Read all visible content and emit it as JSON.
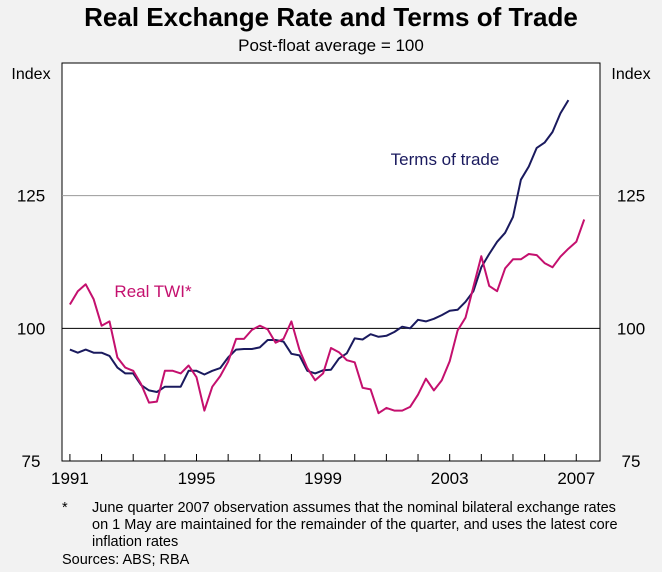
{
  "chart_data": {
    "type": "line",
    "title": "Real Exchange Rate and Terms of Trade",
    "subtitle": "Post-float average = 100",
    "ylabel_left": "Index",
    "ylabel_right": "Index",
    "xlim": [
      1990.75,
      2007.75
    ],
    "ylim": [
      75,
      150
    ],
    "yticks": [
      75,
      100,
      125
    ],
    "ytick_labels": [
      "75",
      "100",
      "125"
    ],
    "xticks": [
      1991,
      1995,
      1999,
      2003,
      2007
    ],
    "xtick_labels": [
      "1991",
      "1995",
      "1999",
      "2003",
      "2007"
    ],
    "gridlines": [
      100,
      125
    ],
    "series": [
      {
        "name": "Terms of trade",
        "color": "#1a1a5e",
        "x": [
          1991.0,
          1991.25,
          1991.5,
          1991.75,
          1992.0,
          1992.25,
          1992.5,
          1992.75,
          1993.0,
          1993.25,
          1993.5,
          1993.75,
          1994.0,
          1994.25,
          1994.5,
          1994.75,
          1995.0,
          1995.25,
          1995.5,
          1995.75,
          1996.0,
          1996.25,
          1996.5,
          1996.75,
          1997.0,
          1997.25,
          1997.5,
          1997.75,
          1998.0,
          1998.25,
          1998.5,
          1998.75,
          1999.0,
          1999.25,
          1999.5,
          1999.75,
          2000.0,
          2000.25,
          2000.5,
          2000.75,
          2001.0,
          2001.25,
          2001.5,
          2001.75,
          2002.0,
          2002.25,
          2002.5,
          2002.75,
          2003.0,
          2003.25,
          2003.5,
          2003.75,
          2004.0,
          2004.25,
          2004.5,
          2004.75,
          2005.0,
          2005.25,
          2005.5,
          2005.75,
          2006.0,
          2006.25,
          2006.5,
          2006.75
        ],
        "values": [
          96.0,
          95.4,
          96.0,
          95.4,
          95.4,
          94.8,
          92.6,
          91.5,
          91.5,
          89.3,
          88.3,
          88.0,
          89.0,
          89.0,
          89.0,
          92.0,
          92.0,
          91.3,
          92.0,
          92.5,
          94.5,
          96.0,
          96.1,
          96.1,
          96.4,
          97.8,
          97.8,
          97.5,
          95.2,
          94.9,
          92.0,
          91.5,
          92.1,
          92.2,
          94.3,
          95.3,
          98.1,
          97.9,
          98.9,
          98.4,
          98.6,
          99.3,
          100.3,
          100.0,
          101.6,
          101.3,
          101.8,
          102.5,
          103.3,
          103.5,
          105.0,
          107.0,
          111.5,
          114.0,
          116.3,
          118.0,
          121.0,
          128.0,
          130.5,
          134.0,
          135.0,
          137.0,
          140.5,
          143.0
        ]
      },
      {
        "name": "Real TWI*",
        "color": "#c4106e",
        "x": [
          1991.0,
          1991.25,
          1991.5,
          1991.75,
          1992.0,
          1992.25,
          1992.5,
          1992.75,
          1993.0,
          1993.25,
          1993.5,
          1993.75,
          1994.0,
          1994.25,
          1994.5,
          1994.75,
          1995.0,
          1995.25,
          1995.5,
          1995.75,
          1996.0,
          1996.25,
          1996.5,
          1996.75,
          1997.0,
          1997.25,
          1997.5,
          1997.75,
          1998.0,
          1998.25,
          1998.5,
          1998.75,
          1999.0,
          1999.25,
          1999.5,
          1999.75,
          2000.0,
          2000.25,
          2000.5,
          2000.75,
          2001.0,
          2001.25,
          2001.5,
          2001.75,
          2002.0,
          2002.25,
          2002.5,
          2002.75,
          2003.0,
          2003.25,
          2003.5,
          2003.75,
          2004.0,
          2004.25,
          2004.5,
          2004.75,
          2005.0,
          2005.25,
          2005.5,
          2005.75,
          2006.0,
          2006.25,
          2006.5,
          2006.75,
          2007.0,
          2007.25
        ],
        "values": [
          104.5,
          107.0,
          108.3,
          105.5,
          100.5,
          101.3,
          94.5,
          92.6,
          92.0,
          89.5,
          86.0,
          86.2,
          92.0,
          92.0,
          91.5,
          93.0,
          90.8,
          84.5,
          89.0,
          91.0,
          93.7,
          98.0,
          98.0,
          99.7,
          100.5,
          99.8,
          97.3,
          98.0,
          101.3,
          96.0,
          92.5,
          90.2,
          91.5,
          96.3,
          95.5,
          94.0,
          93.6,
          88.8,
          88.5,
          84.0,
          85.0,
          84.5,
          84.5,
          85.2,
          87.5,
          90.5,
          88.3,
          90.2,
          93.8,
          99.6,
          102.0,
          107.8,
          113.6,
          108.0,
          107.0,
          111.3,
          113.0,
          113.0,
          114.0,
          113.8,
          112.3,
          111.5,
          113.5,
          115.0,
          116.3,
          120.5
        ]
      }
    ],
    "annotations": [
      {
        "text": "Terms of trade",
        "series": 0
      },
      {
        "text": "Real TWI*",
        "series": 1
      }
    ]
  },
  "footnote": {
    "marker": "*",
    "text": "June quarter 2007 observation assumes that the nominal bilateral exchange rates on 1 May are maintained for the remainder of the quarter, and uses the latest core inflation rates"
  },
  "sources": "Sources: ABS; RBA"
}
